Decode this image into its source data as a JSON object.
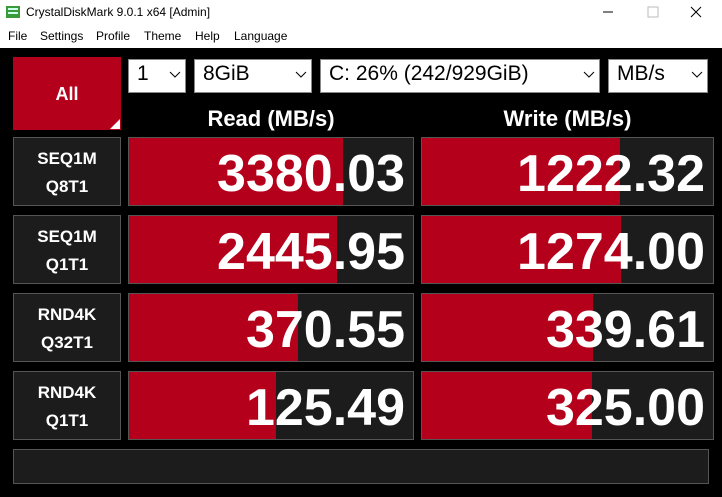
{
  "window": {
    "title": "CrystalDiskMark 9.0.1 x64 [Admin]"
  },
  "menu": [
    "File",
    "Settings",
    "Profile",
    "Theme",
    "Help",
    "Language"
  ],
  "controls": {
    "all_button": "All",
    "count": "1",
    "size": "8GiB",
    "drive": "C: 26% (242/929GiB)",
    "unit": "MB/s"
  },
  "headers": {
    "read": "Read (MB/s)",
    "write": "Write (MB/s)"
  },
  "bar_scale": {
    "scale": "log",
    "xlim": [
      0.1,
      100000
    ],
    "color": "#b5001b"
  },
  "tests": [
    {
      "label": [
        "SEQ1M",
        "Q8T1"
      ],
      "read": {
        "value": 3380.03,
        "label": "3380.03"
      },
      "write": {
        "value": 1222.32,
        "label": "1222.32"
      }
    },
    {
      "label": [
        "SEQ1M",
        "Q1T1"
      ],
      "read": {
        "value": 2445.95,
        "label": "2445.95"
      },
      "write": {
        "value": 1274.0,
        "label": "1274.00"
      }
    },
    {
      "label": [
        "RND4K",
        "Q32T1"
      ],
      "read": {
        "value": 370.55,
        "label": "370.55"
      },
      "write": {
        "value": 339.61,
        "label": "339.61"
      }
    },
    {
      "label": [
        "RND4K",
        "Q1T1"
      ],
      "read": {
        "value": 125.49,
        "label": "125.49"
      },
      "write": {
        "value": 325.0,
        "label": "325.00"
      }
    }
  ]
}
